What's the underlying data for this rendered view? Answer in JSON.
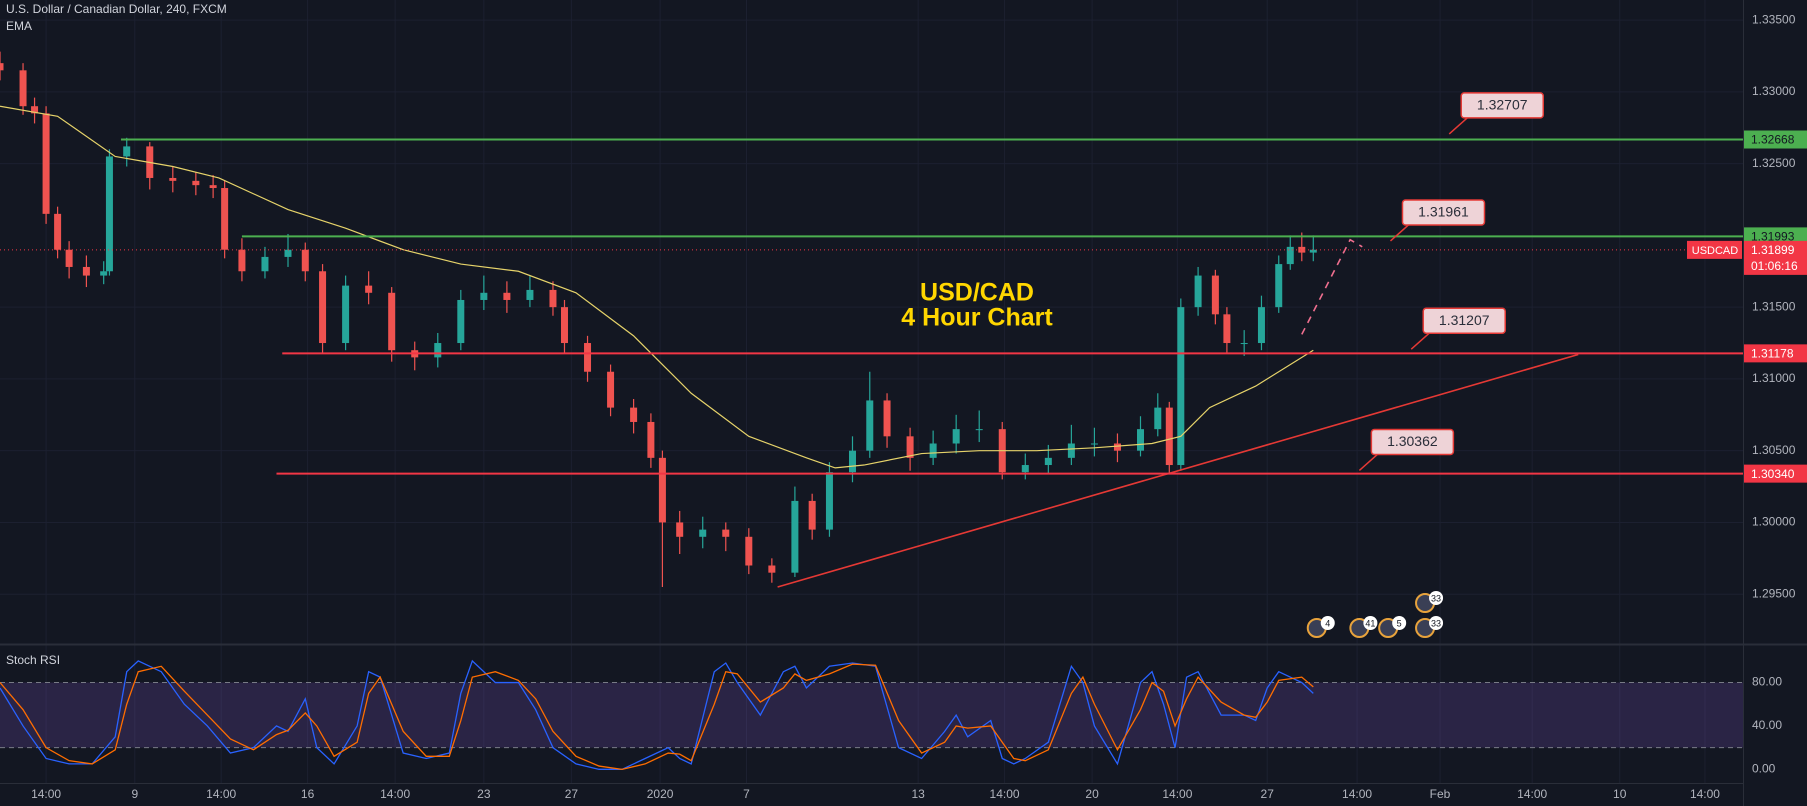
{
  "header": {
    "title": "U.S. Dollar / Canadian Dollar, 240, FXCM"
  },
  "chart_data": [
    {
      "type": "candlestick",
      "title_lines": [
        "USD/CAD",
        "4 Hour Chart"
      ],
      "up_color": "#26a69a",
      "down_color": "#ef5350",
      "x": [
        0,
        4,
        6,
        8,
        10,
        12,
        15,
        18,
        19,
        22,
        26,
        30,
        34,
        37,
        39,
        42,
        46,
        50,
        53,
        56,
        60,
        64,
        68,
        72,
        76,
        80,
        84,
        88,
        92,
        96,
        98,
        102,
        106,
        110,
        113,
        115,
        118,
        122,
        126,
        130,
        134,
        138,
        141,
        144,
        148,
        151,
        154,
        158,
        162,
        166,
        170,
        174,
        178,
        182,
        186,
        190,
        194,
        198,
        201,
        203,
        205,
        208,
        211,
        213,
        216,
        219,
        222,
        224,
        226,
        228
      ],
      "open": [
        1.332,
        1.3315,
        1.329,
        1.3285,
        1.3215,
        1.319,
        1.3178,
        1.3172,
        1.3175,
        1.3255,
        1.3262,
        1.324,
        1.3238,
        1.3235,
        1.3233,
        1.319,
        1.3175,
        1.3185,
        1.319,
        1.3175,
        1.3125,
        1.3165,
        1.316,
        1.312,
        1.3115,
        1.3125,
        1.3155,
        1.316,
        1.3155,
        1.3162,
        1.315,
        1.3125,
        1.3105,
        1.308,
        1.307,
        1.3045,
        1.3,
        1.299,
        1.2995,
        1.299,
        1.297,
        1.2965,
        1.3015,
        1.2995,
        1.3035,
        1.305,
        1.3085,
        1.306,
        1.3045,
        1.3055,
        1.3065,
        1.3065,
        1.3035,
        1.304,
        1.3045,
        1.3055,
        1.3055,
        1.305,
        1.3065,
        1.308,
        1.304,
        1.315,
        1.3172,
        1.3145,
        1.3125,
        1.3125,
        1.315,
        1.318,
        1.3192,
        1.3188
      ],
      "high": [
        1.3328,
        1.332,
        1.3296,
        1.329,
        1.322,
        1.3196,
        1.3186,
        1.3182,
        1.326,
        1.3268,
        1.3265,
        1.3248,
        1.3244,
        1.3242,
        1.3238,
        1.3198,
        1.3192,
        1.3201,
        1.3195,
        1.318,
        1.3172,
        1.3175,
        1.3164,
        1.3126,
        1.3132,
        1.3162,
        1.3172,
        1.3168,
        1.3172,
        1.3168,
        1.3155,
        1.313,
        1.311,
        1.3086,
        1.3076,
        1.305,
        1.3008,
        1.3004,
        1.3,
        1.2996,
        1.2975,
        1.3025,
        1.302,
        1.3042,
        1.306,
        1.3105,
        1.309,
        1.3066,
        1.3064,
        1.3075,
        1.3078,
        1.307,
        1.3048,
        1.3054,
        1.3068,
        1.3066,
        1.3062,
        1.3074,
        1.309,
        1.3084,
        1.3156,
        1.3178,
        1.3176,
        1.315,
        1.3134,
        1.3158,
        1.3186,
        1.32,
        1.3202,
        1.32
      ],
      "low": [
        1.3308,
        1.3284,
        1.3278,
        1.3208,
        1.3184,
        1.317,
        1.3164,
        1.3166,
        1.3172,
        1.3248,
        1.3232,
        1.323,
        1.3228,
        1.3226,
        1.3184,
        1.3168,
        1.317,
        1.3178,
        1.3168,
        1.3118,
        1.312,
        1.3152,
        1.3112,
        1.3106,
        1.3108,
        1.312,
        1.3148,
        1.3146,
        1.315,
        1.3144,
        1.3118,
        1.3098,
        1.3074,
        1.3062,
        1.3038,
        1.2955,
        1.2978,
        1.2982,
        1.298,
        1.2964,
        1.2958,
        1.2962,
        1.2988,
        1.299,
        1.3028,
        1.3045,
        1.3052,
        1.3036,
        1.304,
        1.3048,
        1.3056,
        1.303,
        1.303,
        1.3034,
        1.304,
        1.3046,
        1.3042,
        1.3046,
        1.306,
        1.3034,
        1.3036,
        1.3144,
        1.3138,
        1.3118,
        1.3116,
        1.312,
        1.3146,
        1.3176,
        1.3182,
        1.3182
      ],
      "close": [
        1.3315,
        1.329,
        1.3285,
        1.3215,
        1.319,
        1.3178,
        1.3172,
        1.3175,
        1.3255,
        1.3262,
        1.324,
        1.3238,
        1.3235,
        1.3233,
        1.319,
        1.3175,
        1.3185,
        1.319,
        1.3175,
        1.3125,
        1.3165,
        1.316,
        1.312,
        1.3115,
        1.3125,
        1.3155,
        1.316,
        1.3155,
        1.3162,
        1.315,
        1.3125,
        1.3105,
        1.308,
        1.307,
        1.3045,
        1.3,
        1.299,
        1.2995,
        1.299,
        1.297,
        1.2965,
        1.3015,
        1.2995,
        1.3035,
        1.305,
        1.3085,
        1.306,
        1.3045,
        1.3055,
        1.3065,
        1.3065,
        1.3035,
        1.304,
        1.3045,
        1.3055,
        1.3055,
        1.305,
        1.3065,
        1.308,
        1.304,
        1.315,
        1.3172,
        1.3145,
        1.3125,
        1.3125,
        1.315,
        1.318,
        1.3192,
        1.3188,
        1.319
      ],
      "series": [
        {
          "name": "EMA",
          "color": "#e6d36a",
          "x": [
            0,
            10,
            20,
            30,
            38,
            50,
            60,
            70,
            80,
            90,
            100,
            110,
            120,
            130,
            140,
            145,
            150,
            160,
            170,
            180,
            190,
            200,
            205,
            210,
            218,
            228
          ],
          "values": [
            1.329,
            1.3283,
            1.3255,
            1.3248,
            1.324,
            1.3218,
            1.3205,
            1.319,
            1.318,
            1.3175,
            1.316,
            1.313,
            1.309,
            1.306,
            1.3045,
            1.3038,
            1.304,
            1.3048,
            1.305,
            1.305,
            1.3052,
            1.3055,
            1.306,
            1.308,
            1.3095,
            1.312
          ]
        }
      ],
      "levels": [
        {
          "value": 1.32668,
          "color": "#4caf50",
          "x_start": 21
        },
        {
          "value": 1.31993,
          "color": "#4caf50",
          "x_start": 42
        },
        {
          "value": 1.31178,
          "color": "#f23645",
          "x_start": 49
        },
        {
          "value": 1.3034,
          "label": "1.30340",
          "color": "#f23645",
          "x_start": 48
        }
      ],
      "trendlines": [
        {
          "color": "#e53935",
          "dashed": false,
          "x": [
            135,
            274
          ],
          "values": [
            1.2955,
            1.3117
          ]
        },
        {
          "color": "#ef6f8f",
          "dashed": true,
          "x": [
            226,
            234.4,
            236.5
          ],
          "values": [
            1.3131,
            1.3197,
            1.3192
          ]
        }
      ],
      "annotations": [
        {
          "value": 1.32707,
          "x": 251.6
        },
        {
          "value": 1.31961,
          "x": 241.4
        },
        {
          "value": 1.31207,
          "x": 245
        },
        {
          "value": 1.30362,
          "x": 236
        }
      ],
      "current_price": {
        "name": "USDCAD",
        "value": 1.31899,
        "countdown": "01:06:16",
        "color": "#f23645"
      },
      "events": [
        {
          "label": "4",
          "x": 228.6
        },
        {
          "label": "41",
          "x": 236
        },
        {
          "label": "5",
          "x": 241
        },
        {
          "label": "33",
          "x": 247.4
        },
        {
          "label": "33",
          "x": 247.4
        }
      ],
      "xlim": [
        0,
        302.6
      ],
      "ylim": [
        1.2916,
        1.3364
      ],
      "yticks": [
        {
          "value": 1.335,
          "label": "1.33500"
        },
        {
          "value": 1.33,
          "label": "1.33000"
        },
        {
          "value": 1.325,
          "label": "1.32500"
        },
        {
          "value": 1.315,
          "label": "1.31500"
        },
        {
          "value": 1.31,
          "label": "1.31000"
        },
        {
          "value": 1.305,
          "label": "1.30500"
        },
        {
          "value": 1.3,
          "label": "1.30000"
        },
        {
          "value": 1.295,
          "label": "1.29500"
        }
      ],
      "grid": true
    },
    {
      "type": "line",
      "title": "Stoch RSI",
      "x": [
        0,
        4,
        8,
        12,
        16,
        20,
        22,
        24,
        28,
        32,
        36,
        40,
        44,
        48,
        50,
        53,
        55,
        58,
        62,
        64,
        66,
        70,
        74,
        78,
        80,
        82,
        86,
        90,
        93,
        96,
        100,
        104,
        108,
        112,
        116,
        118,
        120,
        124,
        126,
        128,
        132,
        136,
        138,
        140,
        144,
        148,
        152,
        156,
        160,
        164,
        166,
        168,
        172,
        174,
        176,
        178,
        182,
        186,
        188,
        190,
        194,
        198,
        200,
        202,
        204,
        206,
        208,
        212,
        216,
        218,
        220,
        222,
        226,
        228
      ],
      "series": [
        {
          "color": "#2962ff",
          "values": [
            75,
            40,
            10,
            5,
            5,
            30,
            90,
            100,
            90,
            60,
            40,
            15,
            20,
            40,
            35,
            65,
            20,
            5,
            40,
            90,
            85,
            15,
            10,
            15,
            70,
            100,
            80,
            80,
            55,
            20,
            5,
            0,
            0,
            10,
            20,
            10,
            5,
            90,
            98,
            80,
            50,
            90,
            95,
            75,
            95,
            98,
            95,
            20,
            10,
            35,
            50,
            30,
            45,
            10,
            5,
            10,
            25,
            95,
            80,
            40,
            5,
            80,
            90,
            60,
            20,
            85,
            90,
            50,
            50,
            45,
            75,
            90,
            80,
            70
          ]
        },
        {
          "color": "#ff6d00",
          "values": [
            80,
            55,
            20,
            8,
            5,
            18,
            60,
            90,
            95,
            72,
            50,
            28,
            18,
            32,
            36,
            52,
            40,
            12,
            25,
            70,
            85,
            35,
            12,
            12,
            45,
            85,
            90,
            82,
            65,
            35,
            12,
            3,
            0,
            5,
            15,
            14,
            8,
            60,
            90,
            88,
            62,
            75,
            88,
            82,
            88,
            97,
            96,
            45,
            15,
            25,
            40,
            38,
            40,
            25,
            10,
            8,
            18,
            70,
            85,
            60,
            18,
            55,
            80,
            72,
            40,
            65,
            85,
            62,
            50,
            48,
            62,
            82,
            85,
            76
          ]
        }
      ],
      "band": [
        20,
        80
      ],
      "band_color": "#7e57c2",
      "xlim": [
        0,
        302.6
      ],
      "ylim": [
        -12.6,
        113.7
      ],
      "yticks": [
        {
          "value": 80,
          "label": "80.00"
        },
        {
          "value": 40,
          "label": "40.00"
        },
        {
          "value": 0,
          "label": "0.00"
        }
      ],
      "xticks": [
        {
          "value": 8,
          "label": "14:00"
        },
        {
          "value": 23.4,
          "label": "9"
        },
        {
          "value": 38.4,
          "label": "14:00"
        },
        {
          "value": 53.4,
          "label": "16"
        },
        {
          "value": 68.6,
          "label": "14:00"
        },
        {
          "value": 84,
          "label": "23"
        },
        {
          "value": 99.2,
          "label": "27"
        },
        {
          "value": 114.6,
          "label": "2020"
        },
        {
          "value": 129.6,
          "label": "7"
        },
        {
          "value": 159.4,
          "label": "13"
        },
        {
          "value": 174.4,
          "label": "14:00"
        },
        {
          "value": 189.6,
          "label": "20"
        },
        {
          "value": 204.4,
          "label": "14:00"
        },
        {
          "value": 220,
          "label": "27"
        },
        {
          "value": 235.6,
          "label": "14:00"
        },
        {
          "value": 250,
          "label": "Feb"
        },
        {
          "value": 266,
          "label": "14:00"
        },
        {
          "value": 281.2,
          "label": "10"
        },
        {
          "value": 296,
          "label": "14:00"
        }
      ],
      "grid": true
    }
  ]
}
